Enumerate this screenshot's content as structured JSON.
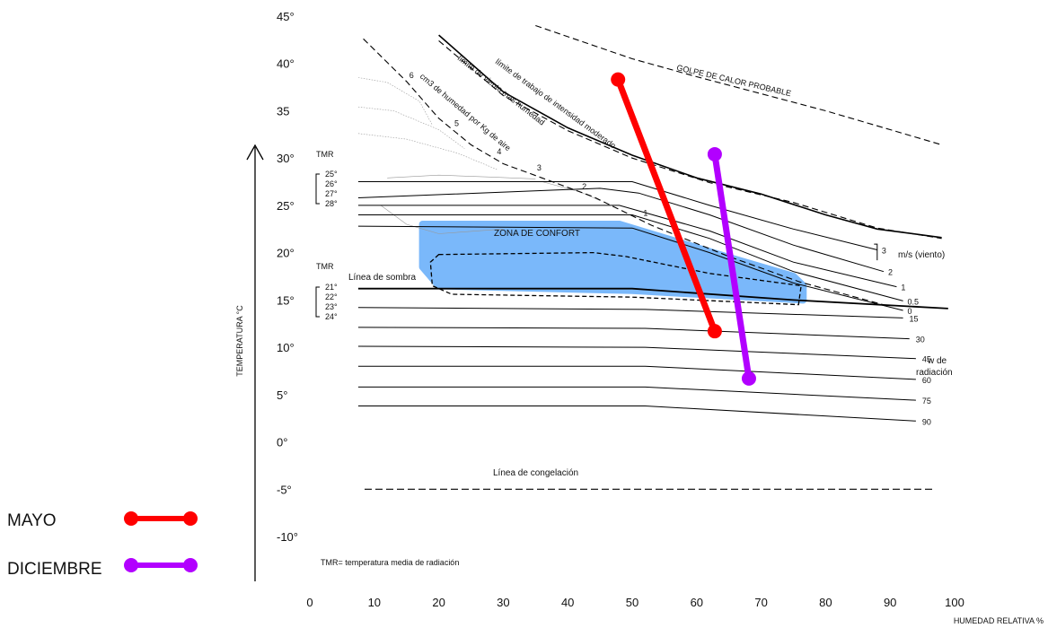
{
  "chart_data": {
    "type": "line",
    "title": "",
    "xlabel": "HUMEDAD RELATIVA %",
    "ylabel": "TEMPERATURA °C",
    "xlim": [
      0,
      100
    ],
    "ylim": [
      -10,
      45
    ],
    "x_ticks": [
      "0",
      "10",
      "20",
      "30",
      "40",
      "50",
      "60",
      "70",
      "80",
      "90",
      "100"
    ],
    "y_ticks": [
      {
        "v": 45,
        "label": "45°"
      },
      {
        "v": 40,
        "label": "40°"
      },
      {
        "v": 35,
        "label": "35"
      },
      {
        "v": 30,
        "label": "30°"
      },
      {
        "v": 25,
        "label": "25°"
      },
      {
        "v": 20,
        "label": "20°"
      },
      {
        "v": 15,
        "label": "15°"
      },
      {
        "v": 10,
        "label": "10°"
      },
      {
        "v": 5,
        "label": "5°"
      },
      {
        "v": 0,
        "label": "0°"
      },
      {
        "v": -5,
        "label": "-5°"
      },
      {
        "v": -10,
        "label": "-10°"
      }
    ],
    "legend_position": "bottom-left",
    "series": [
      {
        "name": "MAYO",
        "color": "#ff0000",
        "x": [
          47.8,
          62.8
        ],
        "y": [
          38.3,
          11.7
        ]
      },
      {
        "name": "DICIEMBRE",
        "color": "#b200ff",
        "x": [
          62.8,
          68.1
        ],
        "y": [
          30.4,
          6.7
        ]
      }
    ],
    "comfort_zone": {
      "label": "ZONA DE CONFORT",
      "color": "#7ab8fa",
      "outline": [
        [
          17.5,
          23
        ],
        [
          48,
          23
        ],
        [
          65,
          19.5
        ],
        [
          75,
          17.5
        ],
        [
          76.5,
          16.5
        ],
        [
          76.5,
          15
        ],
        [
          50,
          16
        ],
        [
          20,
          16.5
        ],
        [
          17.5,
          18.5
        ]
      ],
      "inner_dashed": [
        [
          20,
          19.8
        ],
        [
          44,
          20
        ],
        [
          49,
          19.6
        ],
        [
          62,
          17.8
        ],
        [
          76.2,
          16.5
        ],
        [
          75.8,
          14.5
        ],
        [
          50,
          15.3
        ],
        [
          22,
          15.6
        ],
        [
          19,
          16.5
        ],
        [
          18.7,
          19
        ]
      ]
    },
    "wind_curves": {
      "label": "m/s (viento)",
      "values": [
        "3",
        "2",
        "1",
        "0.5",
        "0"
      ],
      "curves": [
        [
          [
            7.5,
            27.5
          ],
          [
            50,
            27.5
          ],
          [
            62,
            25
          ],
          [
            75,
            22.5
          ],
          [
            88,
            20.3
          ]
        ],
        [
          [
            7.5,
            25.8
          ],
          [
            45,
            26.8
          ],
          [
            51,
            26.3
          ],
          [
            62,
            24
          ],
          [
            75,
            20.8
          ],
          [
            89,
            18
          ]
        ],
        [
          [
            7.5,
            25
          ],
          [
            48,
            25
          ],
          [
            62,
            22.3
          ],
          [
            75,
            19
          ],
          [
            91,
            16.4
          ]
        ],
        [
          [
            7.5,
            24
          ],
          [
            50,
            24
          ],
          [
            62,
            21.5
          ],
          [
            75,
            18
          ],
          [
            92,
            14.9
          ]
        ],
        [
          [
            7.5,
            22.8
          ],
          [
            50,
            22.6
          ],
          [
            62,
            20
          ],
          [
            75,
            16.8
          ],
          [
            92,
            13.9
          ]
        ]
      ]
    },
    "radiation_curves": {
      "label_1": "w de",
      "label_2": "radiación",
      "values": [
        "15",
        "30",
        "45",
        "60",
        "75",
        "90"
      ],
      "curves": [
        [
          [
            7.5,
            14.2
          ],
          [
            52,
            14
          ],
          [
            92,
            13.1
          ]
        ],
        [
          [
            7.5,
            12.1
          ],
          [
            52,
            12
          ],
          [
            93,
            10.9
          ]
        ],
        [
          [
            7.5,
            10.1
          ],
          [
            52,
            10
          ],
          [
            94,
            8.8
          ]
        ],
        [
          [
            7.5,
            8
          ],
          [
            52,
            8
          ],
          [
            94,
            6.6
          ]
        ],
        [
          [
            7.5,
            5.8
          ],
          [
            52,
            5.8
          ],
          [
            94,
            4.4
          ]
        ],
        [
          [
            7.5,
            3.8
          ],
          [
            52,
            3.8
          ],
          [
            94,
            2.2
          ]
        ]
      ]
    },
    "boundary_lines": [
      {
        "label": "límite de trabajo de intensidad moderado",
        "style": "solid",
        "points": [
          [
            20,
            43
          ],
          [
            30,
            37
          ],
          [
            40,
            33.2
          ],
          [
            50,
            30.3
          ],
          [
            60,
            27.9
          ],
          [
            70,
            26.2
          ],
          [
            80,
            24
          ],
          [
            88,
            22.5
          ],
          [
            98,
            21.6
          ]
        ]
      },
      {
        "label": "límite de viento mas humedad",
        "style": "dashed",
        "points": [
          [
            20,
            42.4
          ],
          [
            30,
            36.6
          ],
          [
            40,
            32.9
          ],
          [
            50,
            30
          ],
          [
            62,
            27.4
          ],
          [
            75,
            25.3
          ],
          [
            88,
            22.6
          ],
          [
            98,
            21.5
          ]
        ]
      },
      {
        "label": "GOLPE DE CALOR PROBABLE",
        "style": "dashed",
        "points": [
          [
            35,
            44
          ],
          [
            50,
            40.5
          ],
          [
            60,
            38.6
          ],
          [
            70,
            36.8
          ],
          [
            80,
            35
          ],
          [
            90,
            33
          ],
          [
            98,
            31.4
          ]
        ]
      }
    ],
    "humidity_line": {
      "label": "cm3 de humedad por Kg de aire",
      "values": [
        "6",
        "5",
        "4",
        "3",
        "2",
        "1"
      ],
      "points": [
        [
          8.3,
          42.6
        ],
        [
          15,
          38.1
        ],
        [
          20,
          34.2
        ],
        [
          25,
          31.4
        ],
        [
          30,
          29.4
        ],
        [
          36,
          27.9
        ],
        [
          44,
          25.9
        ],
        [
          53,
          22.9
        ],
        [
          65,
          19.6
        ],
        [
          76,
          16.9
        ],
        [
          90,
          14.3
        ]
      ],
      "mark_positions": [
        [
          15,
          38.1
        ],
        [
          22,
          33
        ],
        [
          28.6,
          30
        ],
        [
          34.8,
          28.3
        ],
        [
          41.8,
          26.3
        ],
        [
          51.3,
          23.5
        ]
      ]
    },
    "tmr_upper": {
      "title": "TMR",
      "values": [
        "25°",
        "26°",
        "27°",
        "28°"
      ]
    },
    "tmr_lower": {
      "title": "TMR",
      "values": [
        "21°",
        "22°",
        "23°",
        "24°"
      ]
    },
    "shade_line": {
      "label": "Línea de sombra",
      "points": [
        [
          7.5,
          16.2
        ],
        [
          50,
          16.2
        ],
        [
          75,
          15
        ],
        [
          99,
          14.1
        ]
      ]
    },
    "freeze_line": {
      "label": "Línea de congelación",
      "points": [
        [
          8.5,
          -5
        ],
        [
          97,
          -5
        ]
      ]
    },
    "footnote": "TMR= temperatura media de radiación"
  }
}
